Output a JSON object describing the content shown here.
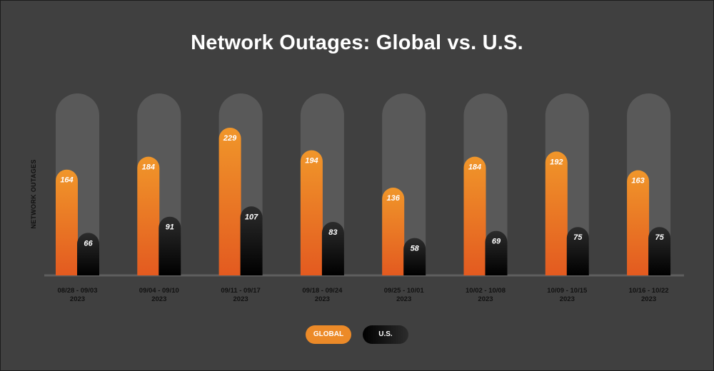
{
  "chart_data": {
    "type": "bar",
    "title": "Network Outages: Global vs. U.S.",
    "xlabel": "",
    "ylabel": "NETWORK OUTAGES",
    "ylim": [
      0,
      290
    ],
    "grid": false,
    "legend": "bottom-center",
    "categories": [
      {
        "range": "08/28 - 09/03",
        "year": "2023"
      },
      {
        "range": "09/04 - 09/10",
        "year": "2023"
      },
      {
        "range": "09/11 - 09/17",
        "year": "2023"
      },
      {
        "range": "09/18 - 09/24",
        "year": "2023"
      },
      {
        "range": "09/25 - 10/01",
        "year": "2023"
      },
      {
        "range": "10/02 - 10/08",
        "year": "2023"
      },
      {
        "range": "10/09 - 10/15",
        "year": "2023"
      },
      {
        "range": "10/16 - 10/22",
        "year": "2023"
      }
    ],
    "series": [
      {
        "name": "GLOBAL",
        "color": "#ec8a28",
        "values": [
          164,
          184,
          229,
          194,
          136,
          184,
          192,
          163
        ]
      },
      {
        "name": "U.S.",
        "color": "#000000",
        "values": [
          66,
          91,
          107,
          83,
          58,
          69,
          75,
          75
        ]
      }
    ],
    "colors": {
      "background": "#404040",
      "track": "#595959",
      "baseline": "#5e5e5e",
      "global_top": "#f0962a",
      "global_bottom": "#e35a20",
      "us_top": "#2c2c2c",
      "us_bottom": "#000000"
    }
  }
}
